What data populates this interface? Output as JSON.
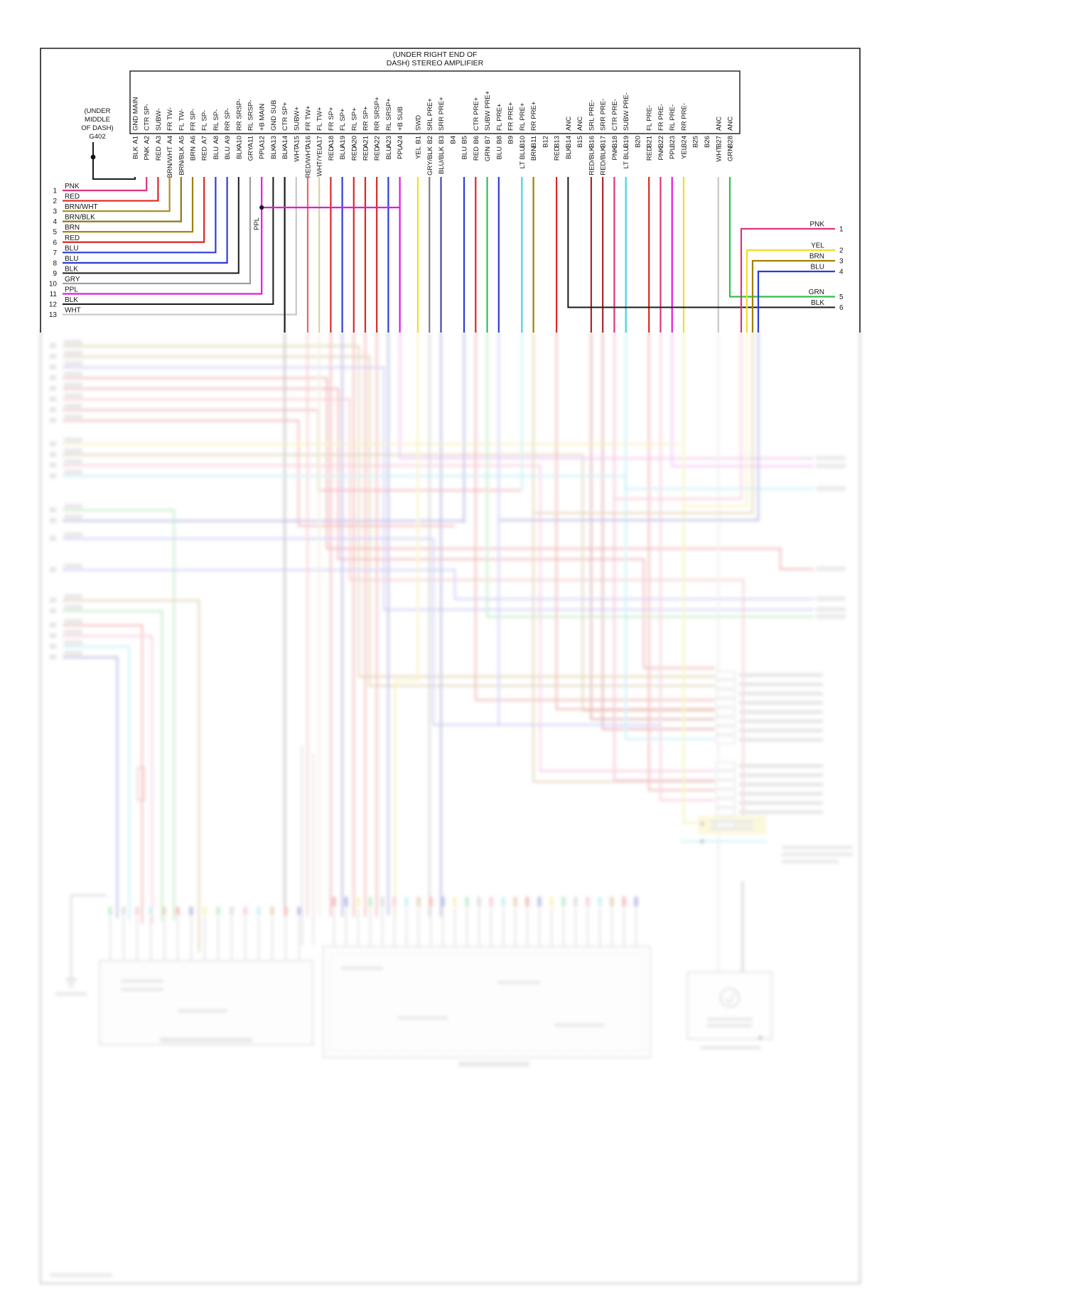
{
  "amplifier": {
    "title_line1": "(UNDER RIGHT END OF",
    "title_line2": "DASH) STEREO AMPLIFIER"
  },
  "ground_g402": {
    "line1": "(UNDER",
    "line2": "MIDDLE",
    "line3": "OF DASH)",
    "line4": "G402"
  },
  "ppl_junction_label": "PPL",
  "wire_colors": {
    "BLK": "#1a1a1a",
    "PNK": "#e0337e",
    "RED": "#dd2525",
    "BRN": "#a08000",
    "BRN/WHT": "#ac9025",
    "BRN/BLK": "#8c7418",
    "BLU": "#2c3cd8",
    "GRY": "#9d9d9d",
    "PPL": "#e317e3",
    "WHT": "#c9c9c9",
    "YEL": "#efdf26",
    "GRN": "#2fbf4a",
    "LT BLU": "#44d2e4",
    "RED/WHT": "#e46a6a",
    "WHT/YEL": "#d8d29c",
    "GRY/BLK": "#7d7d7d",
    "BLU/BLK": "#4646ae",
    "RED/BLK": "#b02525"
  },
  "connector_a": {
    "pins": [
      {
        "id": "A1",
        "signal": "GND MAIN",
        "wire": "BLK"
      },
      {
        "id": "A2",
        "signal": "CTR SP-",
        "wire": "PNK"
      },
      {
        "id": "A3",
        "signal": "SUBW-",
        "wire": "RED"
      },
      {
        "id": "A4",
        "signal": "FR TW-",
        "wire": "BRN/WHT"
      },
      {
        "id": "A5",
        "signal": "FL TW-",
        "wire": "BRN/BLK"
      },
      {
        "id": "A6",
        "signal": "FR SP-",
        "wire": "BRN"
      },
      {
        "id": "A7",
        "signal": "FL SP-",
        "wire": "RED"
      },
      {
        "id": "A8",
        "signal": "RL SP-",
        "wire": "BLU"
      },
      {
        "id": "A9",
        "signal": "RR SP-",
        "wire": "BLU"
      },
      {
        "id": "A10",
        "signal": "RR SRSP-",
        "wire": "BLK"
      },
      {
        "id": "A11",
        "signal": "RL SRSP-",
        "wire": "GRY"
      },
      {
        "id": "A12",
        "signal": "+B MAIN",
        "wire": "PPL"
      },
      {
        "id": "A13",
        "signal": "GND SUB",
        "wire": "BLK"
      },
      {
        "id": "A14",
        "signal": "CTR SP+",
        "wire": "BLK"
      },
      {
        "id": "A15",
        "signal": "SUBW+",
        "wire": "WHT"
      },
      {
        "id": "A16",
        "signal": "FR TW+",
        "wire": "RED/WHT"
      },
      {
        "id": "A17",
        "signal": "FL TW+",
        "wire": "WHT/YEL"
      },
      {
        "id": "A18",
        "signal": "FR SP+",
        "wire": "RED"
      },
      {
        "id": "A19",
        "signal": "FL SP+",
        "wire": "BLU"
      },
      {
        "id": "A20",
        "signal": "RL SP+",
        "wire": "RED"
      },
      {
        "id": "A21",
        "signal": "RR SP+",
        "wire": "RED"
      },
      {
        "id": "A22",
        "signal": "RR SRSP+",
        "wire": "RED"
      },
      {
        "id": "A23",
        "signal": "RL SRSP+",
        "wire": "BLU"
      },
      {
        "id": "A24",
        "signal": "+B SUB",
        "wire": "PPL"
      }
    ]
  },
  "connector_b": {
    "pins": [
      {
        "id": "B1",
        "signal": "SWD",
        "wire": "YEL"
      },
      {
        "id": "B2",
        "signal": "SRL PRE+",
        "wire": "GRY/BLK"
      },
      {
        "id": "B3",
        "signal": "SRR PRE+",
        "wire": "BLU/BLK"
      },
      {
        "id": "B4",
        "signal": "",
        "wire": ""
      },
      {
        "id": "B5",
        "signal": "",
        "wire": "BLU"
      },
      {
        "id": "B6",
        "signal": "CTR PRE+",
        "wire": "RED"
      },
      {
        "id": "B7",
        "signal": "SUBW PRE+",
        "wire": "GRN"
      },
      {
        "id": "B8",
        "signal": "FL PRE+",
        "wire": "BLU"
      },
      {
        "id": "B9",
        "signal": "FR PRE+",
        "wire": ""
      },
      {
        "id": "B10",
        "signal": "RL PRE+",
        "wire": "LT BLU"
      },
      {
        "id": "B11",
        "signal": "RR PRE+",
        "wire": "BRN"
      },
      {
        "id": "B12",
        "signal": "",
        "wire": ""
      },
      {
        "id": "B13",
        "signal": "",
        "wire": "RED"
      },
      {
        "id": "B14",
        "signal": "ANC",
        "wire": "BLK"
      },
      {
        "id": "B15",
        "signal": "ANC",
        "wire": ""
      },
      {
        "id": "B16",
        "signal": "SRL PRE-",
        "wire": "RED/BLK"
      },
      {
        "id": "B17",
        "signal": "SRR PRE-",
        "wire": "RED/BLK"
      },
      {
        "id": "B18",
        "signal": "CTR PRE-",
        "wire": "PNK"
      },
      {
        "id": "B19",
        "signal": "SUBW PRE-",
        "wire": "LT BLU"
      },
      {
        "id": "B20",
        "signal": "",
        "wire": ""
      },
      {
        "id": "B21",
        "signal": "FL PRE-",
        "wire": "RED"
      },
      {
        "id": "B22",
        "signal": "FR PRE-",
        "wire": "PNK"
      },
      {
        "id": "B23",
        "signal": "RL PRE-",
        "wire": "PPL"
      },
      {
        "id": "B24",
        "signal": "RR PRE-",
        "wire": "YEL"
      },
      {
        "id": "B25",
        "signal": "",
        "wire": ""
      },
      {
        "id": "B26",
        "signal": "",
        "wire": ""
      },
      {
        "id": "B27",
        "signal": "ANC",
        "wire": "WHT"
      },
      {
        "id": "B28",
        "signal": "ANC",
        "wire": "GRN"
      }
    ]
  },
  "left_plug": {
    "rows": [
      {
        "n": "1",
        "wire": "PNK"
      },
      {
        "n": "2",
        "wire": "RED"
      },
      {
        "n": "3",
        "wire": "BRN/WHT"
      },
      {
        "n": "4",
        "wire": "BRN/BLK"
      },
      {
        "n": "5",
        "wire": "BRN"
      },
      {
        "n": "6",
        "wire": "RED"
      },
      {
        "n": "7",
        "wire": "BLU"
      },
      {
        "n": "8",
        "wire": "BLU"
      },
      {
        "n": "9",
        "wire": "BLK"
      },
      {
        "n": "10",
        "wire": "GRY"
      },
      {
        "n": "11",
        "wire": "PPL"
      },
      {
        "n": "12",
        "wire": "BLK"
      },
      {
        "n": "13",
        "wire": "WHT"
      }
    ]
  },
  "right_plug": {
    "rows": [
      {
        "n": "1",
        "wire": "PNK"
      },
      {
        "n": "2",
        "wire": "YEL"
      },
      {
        "n": "3",
        "wire": "BRN"
      },
      {
        "n": "4",
        "wire": "BLU"
      },
      {
        "n": "5",
        "wire": "GRN"
      },
      {
        "n": "6",
        "wire": "BLK"
      }
    ]
  }
}
